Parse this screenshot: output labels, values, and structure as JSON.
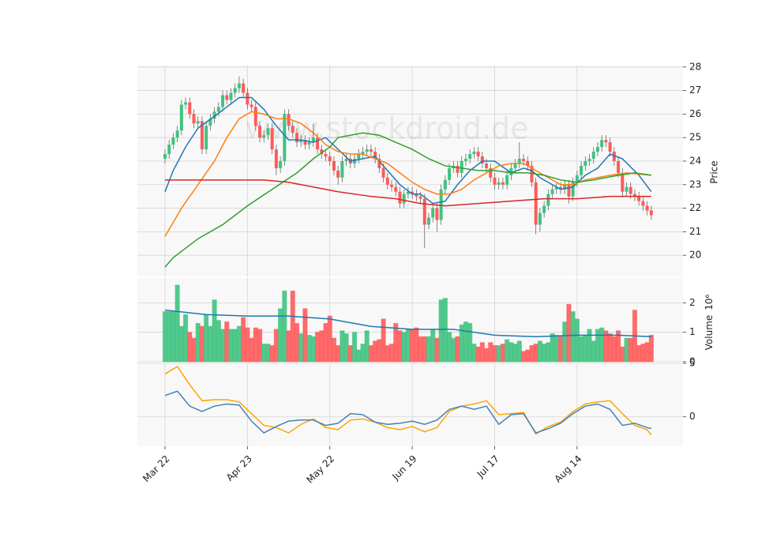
{
  "chart_data": [
    {
      "type": "candlestick",
      "watermark": "www.stockdroid.de",
      "ylabel": "Price",
      "xlim": [
        -6.7,
        125.7
      ],
      "ylim": [
        19.1,
        28.06
      ],
      "yticks": [
        20,
        21,
        22,
        23,
        24,
        25,
        26,
        27,
        28
      ],
      "grid": true,
      "up_color": "#3fc380",
      "down_color": "#ff5a5a",
      "open": [
        24.1,
        24.3,
        24.7,
        25.0,
        25.3,
        26.4,
        26.5,
        26.0,
        25.6,
        25.7,
        24.5,
        25.5,
        25.8,
        26.1,
        26.3,
        26.8,
        26.6,
        26.9,
        27.1,
        27.3,
        26.9,
        26.4,
        26.3,
        25.5,
        25.0,
        25.1,
        25.4,
        24.5,
        23.7,
        24.0,
        26.0,
        25.5,
        25.2,
        24.8,
        24.9,
        24.7,
        24.8,
        25.0,
        24.5,
        24.3,
        24.2,
        24.0,
        23.6,
        23.3,
        24.0,
        24.1,
        23.9,
        24.1,
        24.3,
        24.4,
        24.5,
        24.4,
        24.1,
        23.7,
        23.3,
        23.0,
        22.9,
        22.7,
        22.2,
        22.6,
        22.7,
        22.6,
        22.5,
        22.4,
        21.3,
        21.6,
        22.0,
        21.5,
        22.8,
        23.2,
        23.7,
        23.8,
        23.5,
        24.0,
        24.1,
        24.3,
        24.4,
        24.2,
        23.9,
        23.7,
        23.3,
        23.0,
        23.1,
        23.0,
        23.4,
        23.7,
        23.9,
        24.1,
        24.0,
        23.8,
        23.1,
        21.3,
        21.8,
        22.1,
        22.6,
        22.8,
        22.9,
        22.8,
        23.0,
        22.5,
        23.1,
        23.4,
        23.8,
        24.0,
        24.1,
        24.4,
        24.6,
        24.9,
        24.8,
        24.4,
        24.0,
        23.5,
        22.7,
        22.9,
        22.6,
        22.5,
        22.3,
        22.1,
        21.9
      ],
      "high": [
        24.5,
        24.9,
        25.2,
        25.5,
        26.6,
        26.7,
        26.7,
        26.2,
        25.9,
        25.9,
        25.7,
        26.0,
        26.3,
        26.5,
        27.0,
        27.0,
        27.1,
        27.3,
        27.6,
        27.5,
        27.1,
        26.6,
        26.5,
        25.7,
        25.3,
        25.6,
        25.6,
        24.7,
        24.2,
        26.2,
        26.2,
        25.7,
        25.4,
        25.1,
        25.1,
        25.0,
        25.6,
        25.2,
        24.7,
        24.5,
        24.4,
        24.2,
        23.8,
        24.2,
        24.3,
        24.3,
        24.3,
        24.5,
        24.6,
        24.7,
        24.7,
        24.6,
        24.3,
        23.9,
        23.5,
        23.2,
        23.1,
        22.9,
        22.8,
        22.9,
        22.9,
        22.8,
        22.7,
        22.6,
        21.8,
        22.2,
        22.2,
        23.0,
        23.4,
        23.9,
        24.0,
        24.0,
        24.2,
        24.3,
        24.5,
        24.6,
        24.6,
        24.4,
        24.1,
        23.9,
        23.5,
        23.3,
        23.3,
        23.6,
        23.9,
        24.1,
        24.8,
        24.3,
        24.2,
        24.0,
        23.3,
        22.0,
        22.3,
        22.8,
        23.0,
        23.1,
        23.1,
        23.2,
        23.2,
        23.3,
        23.6,
        24.0,
        24.2,
        24.3,
        24.6,
        24.8,
        25.1,
        25.1,
        25.0,
        24.6,
        24.2,
        23.7,
        23.1,
        23.1,
        22.8,
        22.7,
        22.5,
        22.3,
        22.1
      ],
      "low": [
        23.9,
        24.1,
        24.5,
        24.8,
        25.1,
        26.2,
        25.8,
        25.4,
        25.4,
        24.3,
        24.3,
        25.3,
        25.6,
        25.9,
        26.1,
        26.4,
        26.4,
        26.7,
        26.9,
        26.7,
        26.2,
        26.1,
        25.3,
        24.8,
        24.8,
        24.9,
        24.3,
        23.4,
        23.5,
        23.8,
        25.3,
        25.0,
        24.6,
        24.6,
        24.5,
        24.5,
        24.6,
        24.3,
        24.1,
        24.0,
        23.8,
        23.4,
        23.0,
        23.1,
        23.8,
        23.7,
        23.7,
        23.9,
        24.1,
        24.2,
        24.2,
        23.9,
        23.5,
        23.1,
        22.8,
        22.7,
        22.5,
        22.0,
        22.0,
        22.4,
        22.4,
        22.3,
        22.2,
        20.3,
        21.1,
        21.4,
        21.0,
        21.3,
        22.6,
        23.0,
        23.5,
        23.3,
        23.3,
        23.8,
        23.9,
        24.1,
        24.0,
        23.7,
        23.5,
        23.1,
        22.8,
        22.8,
        22.8,
        22.8,
        23.2,
        23.5,
        23.7,
        23.8,
        23.6,
        22.9,
        20.9,
        21.0,
        21.6,
        21.9,
        22.4,
        22.6,
        22.6,
        22.6,
        22.2,
        22.3,
        22.9,
        23.2,
        23.6,
        23.8,
        23.9,
        24.2,
        24.4,
        24.6,
        24.2,
        23.8,
        23.3,
        22.5,
        22.5,
        22.4,
        22.3,
        22.1,
        21.9,
        21.7,
        21.5
      ],
      "close": [
        24.3,
        24.7,
        25.0,
        25.3,
        26.4,
        26.5,
        26.0,
        25.6,
        25.7,
        24.5,
        25.5,
        25.8,
        26.1,
        26.3,
        26.8,
        26.6,
        26.9,
        27.1,
        27.3,
        26.9,
        26.4,
        26.3,
        25.5,
        25.0,
        25.1,
        25.4,
        24.5,
        23.7,
        24.0,
        26.0,
        25.5,
        25.2,
        24.8,
        24.9,
        24.7,
        24.8,
        25.0,
        24.5,
        24.3,
        24.2,
        24.0,
        23.6,
        23.3,
        24.0,
        24.1,
        23.9,
        24.1,
        24.3,
        24.4,
        24.5,
        24.4,
        24.1,
        23.7,
        23.3,
        23.0,
        22.9,
        22.7,
        22.2,
        22.6,
        22.7,
        22.6,
        22.5,
        22.4,
        21.3,
        21.6,
        22.0,
        21.5,
        22.8,
        23.2,
        23.7,
        23.8,
        23.5,
        24.0,
        24.1,
        24.3,
        24.4,
        24.2,
        23.9,
        23.7,
        23.3,
        23.0,
        23.1,
        23.0,
        23.4,
        23.7,
        23.9,
        24.1,
        24.0,
        23.8,
        23.1,
        21.3,
        21.8,
        22.1,
        22.6,
        22.8,
        22.9,
        22.8,
        23.0,
        22.5,
        23.1,
        23.4,
        23.8,
        24.0,
        24.1,
        24.4,
        24.6,
        24.9,
        24.8,
        24.4,
        24.0,
        23.5,
        22.7,
        22.9,
        22.6,
        22.5,
        22.3,
        22.1,
        21.9,
        21.7
      ],
      "series": [
        {
          "color": "#1f77b4",
          "x": [
            0,
            2,
            5,
            8,
            12,
            15,
            18,
            21,
            24,
            27,
            30,
            33,
            36,
            39,
            42,
            45,
            48,
            51,
            54,
            57,
            60,
            62,
            65,
            68,
            71,
            74,
            77,
            80,
            84,
            87,
            89,
            91,
            96,
            99,
            102,
            105,
            108,
            111,
            115,
            118
          ],
          "values": [
            22.7,
            23.6,
            24.6,
            25.4,
            25.9,
            26.3,
            26.7,
            26.7,
            26.2,
            25.5,
            24.9,
            24.9,
            24.8,
            25.0,
            24.5,
            24.0,
            24.1,
            24.2,
            23.6,
            23.0,
            22.6,
            22.6,
            22.2,
            22.3,
            23.0,
            23.6,
            24.0,
            24.0,
            23.5,
            23.7,
            23.6,
            23.3,
            22.8,
            22.9,
            23.4,
            23.7,
            24.3,
            24.1,
            23.4,
            22.7
          ]
        },
        {
          "color": "#ff7f0e",
          "x": [
            0,
            2,
            4,
            8,
            12,
            15,
            18,
            21,
            24,
            27,
            30,
            33,
            36,
            39,
            42,
            45,
            48,
            51,
            54,
            57,
            60,
            63,
            66,
            69,
            72,
            75,
            78,
            81,
            84,
            87,
            90,
            93,
            96,
            99,
            102,
            105,
            108,
            112,
            118
          ],
          "values": [
            20.8,
            21.4,
            22.0,
            23.0,
            24.0,
            25.0,
            25.8,
            26.1,
            26.0,
            25.8,
            25.8,
            25.6,
            25.2,
            24.7,
            24.4,
            24.3,
            24.3,
            24.1,
            23.9,
            23.5,
            23.1,
            22.8,
            22.6,
            22.6,
            22.8,
            23.2,
            23.5,
            23.8,
            23.9,
            23.9,
            23.6,
            23.3,
            23.0,
            23.0,
            23.2,
            23.3,
            23.4,
            23.5,
            23.4
          ]
        },
        {
          "color": "#2ca02c",
          "x": [
            0,
            2,
            8,
            14,
            20,
            26,
            32,
            36,
            40,
            42,
            48,
            52,
            56,
            60,
            64,
            68,
            72,
            76,
            80,
            84,
            88,
            92,
            96,
            100,
            104,
            110,
            114,
            118
          ],
          "values": [
            19.5,
            19.9,
            20.7,
            21.3,
            22.1,
            22.8,
            23.5,
            24.1,
            24.6,
            25.0,
            25.2,
            25.1,
            24.8,
            24.5,
            24.1,
            23.8,
            23.7,
            23.6,
            23.6,
            23.5,
            23.5,
            23.4,
            23.2,
            23.1,
            23.2,
            23.4,
            23.5,
            23.4
          ]
        },
        {
          "color": "#d62728",
          "x": [
            0,
            10,
            18,
            24,
            30,
            36,
            42,
            50,
            56,
            62,
            68,
            76,
            84,
            92,
            100,
            108,
            118
          ],
          "values": [
            23.2,
            23.2,
            23.2,
            23.2,
            23.1,
            22.9,
            22.7,
            22.5,
            22.4,
            22.2,
            22.1,
            22.2,
            22.3,
            22.4,
            22.4,
            22.5,
            22.5
          ]
        }
      ]
    },
    {
      "type": "bar",
      "ylabel": "Volume",
      "offset_label": "10⁶",
      "xlim": [
        -6.7,
        125.7
      ],
      "ylim": [
        0,
        2.84
      ],
      "yticks": [
        0,
        1,
        2
      ],
      "grid": true,
      "values": [
        1.7,
        1.7,
        1.7,
        2.6,
        1.2,
        1.6,
        1.0,
        0.8,
        1.3,
        1.2,
        1.6,
        1.2,
        2.1,
        1.4,
        1.1,
        1.35,
        1.1,
        1.1,
        1.2,
        1.5,
        1.15,
        0.8,
        1.15,
        1.1,
        0.6,
        0.6,
        0.55,
        1.1,
        1.8,
        2.4,
        1.05,
        2.4,
        1.3,
        0.95,
        1.8,
        0.9,
        0.85,
        1.0,
        1.05,
        1.3,
        1.55,
        0.8,
        0.55,
        1.05,
        0.95,
        0.55,
        1.0,
        0.4,
        0.6,
        1.05,
        0.55,
        0.7,
        0.75,
        1.45,
        0.55,
        0.6,
        1.3,
        1.05,
        1.0,
        1.1,
        1.1,
        1.15,
        0.85,
        0.85,
        0.85,
        1.1,
        0.8,
        2.1,
        2.15,
        1.0,
        0.8,
        0.85,
        1.25,
        1.35,
        1.3,
        0.6,
        0.5,
        0.65,
        0.45,
        0.65,
        0.55,
        0.55,
        0.6,
        0.75,
        0.65,
        0.6,
        0.7,
        0.35,
        0.4,
        0.55,
        0.6,
        0.7,
        0.6,
        0.65,
        0.95,
        0.9,
        0.85,
        1.35,
        1.95,
        1.7,
        1.45,
        0.85,
        0.9,
        1.1,
        0.7,
        1.1,
        1.15,
        1.05,
        0.95,
        0.85,
        1.05,
        0.5,
        0.8,
        0.8,
        1.75,
        0.55,
        0.6,
        0.65,
        0.9
      ],
      "series": [
        {
          "color": "#1f77b4",
          "x": [
            0,
            10,
            20,
            30,
            40,
            50,
            60,
            70,
            80,
            90,
            100,
            110,
            118
          ],
          "values": [
            1.75,
            1.6,
            1.55,
            1.55,
            1.45,
            1.2,
            1.1,
            1.1,
            0.9,
            0.85,
            0.9,
            0.9,
            0.85
          ]
        }
      ]
    },
    {
      "type": "line",
      "xlim": [
        -6.7,
        125.7
      ],
      "ylim": [
        -2.75,
        5.0
      ],
      "yticks": [
        0,
        5
      ],
      "grid": true,
      "xticks": [
        {
          "value": 0,
          "label": "Mar 22"
        },
        {
          "value": 20,
          "label": "Apr 23"
        },
        {
          "value": 40,
          "label": "May 22"
        },
        {
          "value": 60,
          "label": "Jun 19"
        },
        {
          "value": 80,
          "label": "Jul 17"
        },
        {
          "value": 100,
          "label": "Aug 14"
        }
      ],
      "series": [
        {
          "color": "#ffa500",
          "x": [
            0,
            3,
            6,
            9,
            12,
            15,
            18,
            21,
            24,
            27,
            30,
            33,
            36,
            39,
            42,
            45,
            48,
            51,
            54,
            57,
            60,
            63,
            66,
            69,
            72,
            75,
            78,
            81,
            84,
            87,
            90,
            93,
            96,
            99,
            102,
            105,
            108,
            111,
            114,
            117,
            118
          ],
          "values": [
            4.0,
            4.7,
            3.0,
            1.5,
            1.6,
            1.6,
            1.4,
            0.3,
            -0.8,
            -1.0,
            -1.5,
            -0.7,
            -0.2,
            -1.0,
            -1.2,
            -0.3,
            -0.2,
            -0.5,
            -1.0,
            -1.2,
            -0.9,
            -1.4,
            -1.0,
            0.5,
            1.0,
            1.2,
            1.5,
            0.2,
            0.3,
            0.4,
            -1.6,
            -0.9,
            -0.5,
            0.5,
            1.2,
            1.4,
            1.5,
            0.3,
            -0.8,
            -1.2,
            -1.7
          ]
        },
        {
          "color": "#4682b4",
          "x": [
            0,
            3,
            6,
            9,
            12,
            15,
            18,
            21,
            24,
            27,
            30,
            33,
            36,
            39,
            42,
            45,
            48,
            51,
            54,
            57,
            60,
            63,
            66,
            69,
            72,
            75,
            78,
            81,
            84,
            87,
            90,
            93,
            96,
            99,
            102,
            105,
            108,
            111,
            114,
            117,
            118
          ],
          "values": [
            2.0,
            2.4,
            1.0,
            0.5,
            1.0,
            1.2,
            1.1,
            -0.4,
            -1.5,
            -0.9,
            -0.4,
            -0.3,
            -0.3,
            -0.8,
            -0.6,
            0.3,
            0.2,
            -0.5,
            -0.7,
            -0.6,
            -0.4,
            -0.7,
            -0.3,
            0.7,
            1.0,
            0.7,
            1.0,
            -0.7,
            0.2,
            0.3,
            -1.5,
            -1.1,
            -0.6,
            0.3,
            1.0,
            1.2,
            0.7,
            -0.8,
            -0.6,
            -1.0,
            -1.1
          ]
        }
      ]
    }
  ]
}
